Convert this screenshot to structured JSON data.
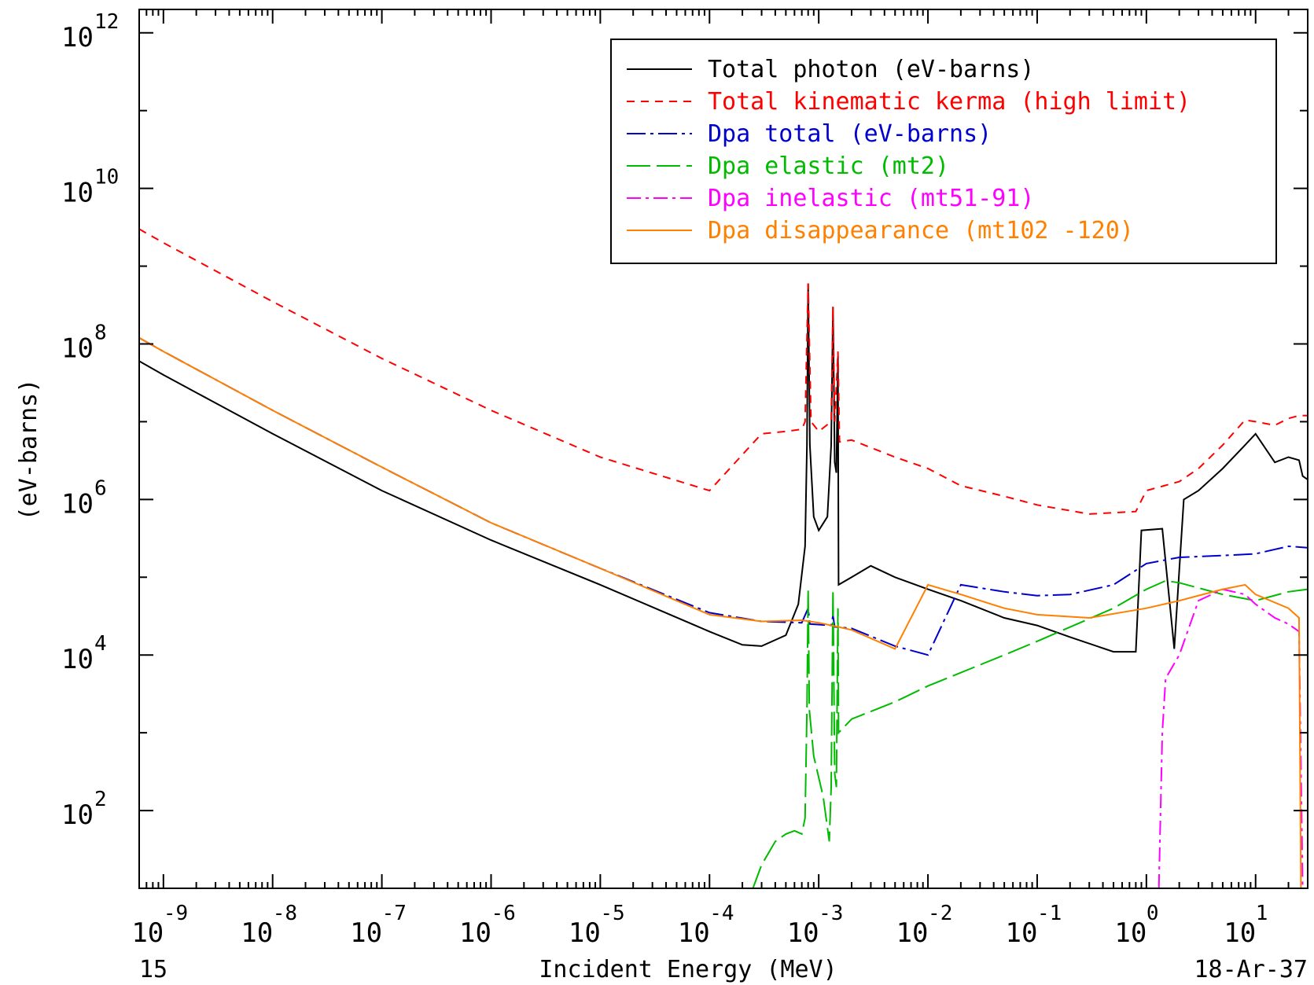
{
  "chart_data": {
    "type": "line",
    "title": "",
    "xlabel": "Incident Energy (MeV)",
    "ylabel": "(eV-barns)",
    "xscale": "log",
    "yscale": "log",
    "xlim": [
      6e-10,
      30
    ],
    "ylim": [
      10,
      2000000000000.0
    ],
    "x_major_ticks": [
      1e-09,
      1e-08,
      1e-07,
      1e-06,
      1e-05,
      0.0001,
      0.001,
      0.01,
      0.1,
      1,
      10
    ],
    "x_tick_labels": [
      {
        "base": "10",
        "exp": "-9"
      },
      {
        "base": "10",
        "exp": "-8"
      },
      {
        "base": "10",
        "exp": "-7"
      },
      {
        "base": "10",
        "exp": "-6"
      },
      {
        "base": "10",
        "exp": "-5"
      },
      {
        "base": "10",
        "exp": "-4"
      },
      {
        "base": "10",
        "exp": "-3"
      },
      {
        "base": "10",
        "exp": "-2"
      },
      {
        "base": "10",
        "exp": "-1"
      },
      {
        "base": "10",
        "exp": "0"
      },
      {
        "base": "10",
        "exp": "1"
      }
    ],
    "y_major_ticks": [
      100.0,
      10000.0,
      1000000.0,
      100000000.0,
      10000000000.0,
      1000000000000.0
    ],
    "y_minor_ticks": [
      1000.0,
      100000.0,
      10000000.0,
      1000000000.0,
      100000000000.0
    ],
    "y_tick_labels": [
      {
        "base": "10",
        "exp": "2"
      },
      {
        "base": "10",
        "exp": "4"
      },
      {
        "base": "10",
        "exp": "6"
      },
      {
        "base": "10",
        "exp": "8"
      },
      {
        "base": "10",
        "exp": "10"
      },
      {
        "base": "10",
        "exp": "12"
      }
    ],
    "grid": false,
    "legend_position": "top-right",
    "footer_left": "15",
    "footer_right": "18-Ar-37",
    "series": [
      {
        "name": "Total photon (eV-barns)",
        "color": "#000000",
        "dash": "solid",
        "points": [
          [
            6e-10,
            60000000.0
          ],
          [
            1e-09,
            40000000.0
          ],
          [
            1e-08,
            7000000.0
          ],
          [
            1e-07,
            1300000.0
          ],
          [
            1e-06,
            300000.0
          ],
          [
            1e-05,
            80000.0
          ],
          [
            0.0001,
            20000.0
          ],
          [
            0.0002,
            13500.0
          ],
          [
            0.0003,
            13000.0
          ],
          [
            0.0005,
            18000.0
          ],
          [
            0.00065,
            45000.0
          ],
          [
            0.00075,
            250000.0
          ],
          [
            0.00078,
            5000000.0
          ],
          [
            0.0008,
            600000000.0
          ],
          [
            0.00083,
            5000000.0
          ],
          [
            0.0009,
            600000.0
          ],
          [
            0.001,
            400000.0
          ],
          [
            0.0012,
            600000.0
          ],
          [
            0.0013,
            5000000.0
          ],
          [
            0.00135,
            300000000.0
          ],
          [
            0.0014,
            3000000.0
          ],
          [
            0.00145,
            2200000.0
          ],
          [
            0.0015,
            70000000.0
          ],
          [
            0.00152,
            80000.0
          ],
          [
            0.002,
            100000.0
          ],
          [
            0.003,
            140000.0
          ],
          [
            0.005,
            100000.0
          ],
          [
            0.01,
            70000.0
          ],
          [
            0.02,
            50000.0
          ],
          [
            0.05,
            30000.0
          ],
          [
            0.1,
            24000.0
          ],
          [
            0.2,
            17000.0
          ],
          [
            0.5,
            11000.0
          ],
          [
            0.8,
            11000.0
          ],
          [
            0.9,
            400000.0
          ],
          [
            1.4,
            420000.0
          ],
          [
            1.8,
            12000.0
          ],
          [
            2.2,
            1000000.0
          ],
          [
            3,
            1300000.0
          ],
          [
            5,
            2500000.0
          ],
          [
            8,
            5000000.0
          ],
          [
            10,
            7000000.0
          ],
          [
            15,
            3000000.0
          ],
          [
            20,
            3500000.0
          ],
          [
            25,
            3200000.0
          ],
          [
            27,
            2000000.0
          ],
          [
            30,
            1800000.0
          ]
        ]
      },
      {
        "name": "Total kinematic kerma (high limit)",
        "color": "#ff0000",
        "dash": "10,8",
        "points": [
          [
            6e-10,
            3000000000.0
          ],
          [
            1e-09,
            2000000000.0
          ],
          [
            1e-08,
            350000000.0
          ],
          [
            1e-07,
            65000000.0
          ],
          [
            1e-06,
            14000000.0
          ],
          [
            1e-05,
            3500000.0
          ],
          [
            0.0001,
            1300000.0
          ],
          [
            0.0003,
            7000000.0
          ],
          [
            0.0005,
            7500000.0
          ],
          [
            0.0007,
            8000000.0
          ],
          [
            0.00075,
            10000000.0
          ],
          [
            0.0008,
            600000000.0
          ],
          [
            0.00085,
            10000000.0
          ],
          [
            0.001,
            7500000.0
          ],
          [
            0.0013,
            10000000.0
          ],
          [
            0.00135,
            300000000.0
          ],
          [
            0.0014,
            10000000.0
          ],
          [
            0.0015,
            80000000.0
          ],
          [
            0.00155,
            5500000.0
          ],
          [
            0.002,
            5800000.0
          ],
          [
            0.005,
            3500000.0
          ],
          [
            0.01,
            2500000.0
          ],
          [
            0.02,
            1500000.0
          ],
          [
            0.05,
            1100000.0
          ],
          [
            0.1,
            850000.0
          ],
          [
            0.3,
            650000.0
          ],
          [
            0.8,
            700000.0
          ],
          [
            1.0,
            1300000.0
          ],
          [
            2,
            1700000.0
          ],
          [
            3,
            2500000.0
          ],
          [
            5,
            5000000.0
          ],
          [
            8,
            10500000.0
          ],
          [
            10,
            10000000.0
          ],
          [
            15,
            9000000.0
          ],
          [
            20,
            11000000.0
          ],
          [
            25,
            12000000.0
          ],
          [
            30,
            12000000.0
          ]
        ]
      },
      {
        "name": "Dpa total (eV-barns)",
        "color": "#0000cc",
        "dash": "24,6,4,6",
        "points": [
          [
            6e-10,
            120000000.0
          ],
          [
            1e-09,
            80000000.0
          ],
          [
            1e-08,
            14000000.0
          ],
          [
            1e-07,
            2600000.0
          ],
          [
            1e-06,
            500000.0
          ],
          [
            1e-05,
            130000.0
          ],
          [
            0.0001,
            35000.0
          ],
          [
            0.0003,
            27000.0
          ],
          [
            0.0007,
            26000.0
          ],
          [
            0.0008,
            40000.0
          ],
          [
            0.00083,
            25000.0
          ],
          [
            0.0013,
            24000.0
          ],
          [
            0.00135,
            32000.0
          ],
          [
            0.0014,
            23000.0
          ],
          [
            0.002,
            22000.0
          ],
          [
            0.005,
            13000.0
          ],
          [
            0.01,
            10000.0
          ],
          [
            0.02,
            80000.0
          ],
          [
            0.05,
            65000.0
          ],
          [
            0.1,
            58000.0
          ],
          [
            0.2,
            60000.0
          ],
          [
            0.5,
            80000.0
          ],
          [
            1,
            150000.0
          ],
          [
            2,
            180000.0
          ],
          [
            5,
            190000.0
          ],
          [
            10,
            200000.0
          ],
          [
            20,
            250000.0
          ],
          [
            30,
            240000.0
          ]
        ]
      },
      {
        "name": "Dpa elastic (mt2)",
        "color": "#00bb00",
        "dash": "30,8",
        "points": [
          [
            0.00025,
            10
          ],
          [
            0.0003,
            20
          ],
          [
            0.0004,
            40
          ],
          [
            0.0005,
            50
          ],
          [
            0.0006,
            55
          ],
          [
            0.0007,
            50
          ],
          [
            0.00075,
            80
          ],
          [
            0.00078,
            2000.0
          ],
          [
            0.0008,
            70000.0
          ],
          [
            0.00082,
            2000.0
          ],
          [
            0.0009,
            500.0
          ],
          [
            0.0011,
            150.0
          ],
          [
            0.00125,
            40
          ],
          [
            0.0013,
            200.0
          ],
          [
            0.00135,
            70000.0
          ],
          [
            0.0014,
            300.0
          ],
          [
            0.00145,
            200.0
          ],
          [
            0.0015,
            40000.0
          ],
          [
            0.00152,
            1000.0
          ],
          [
            0.002,
            1500.0
          ],
          [
            0.005,
            2500.0
          ],
          [
            0.01,
            4000.0
          ],
          [
            0.05,
            10000.0
          ],
          [
            0.1,
            15000.0
          ],
          [
            0.5,
            40000.0
          ],
          [
            1,
            70000.0
          ],
          [
            1.5,
            90000.0
          ],
          [
            2,
            85000.0
          ],
          [
            5,
            60000.0
          ],
          [
            10,
            50000.0
          ],
          [
            20,
            65000.0
          ],
          [
            30,
            70000.0
          ]
        ]
      },
      {
        "name": "Dpa inelastic (mt51-91)",
        "color": "#ff00ff",
        "dash": "18,6,4,6",
        "points": [
          [
            1.3,
            10
          ],
          [
            1.4,
            1000.0
          ],
          [
            1.5,
            5000.0
          ],
          [
            2,
            10000.0
          ],
          [
            3,
            50000.0
          ],
          [
            5,
            70000.0
          ],
          [
            8,
            60000.0
          ],
          [
            10,
            45000.0
          ],
          [
            15,
            30000.0
          ],
          [
            20,
            25000.0
          ],
          [
            25,
            20000.0
          ],
          [
            27,
            10
          ]
        ]
      },
      {
        "name": "Dpa disappearance (mt102 -120)",
        "color": "#ff8000",
        "dash": "solid",
        "points": [
          [
            6e-10,
            120000000.0
          ],
          [
            1e-09,
            80000000.0
          ],
          [
            1e-08,
            14000000.0
          ],
          [
            1e-07,
            2600000.0
          ],
          [
            1e-06,
            500000.0
          ],
          [
            1e-05,
            130000.0
          ],
          [
            0.0001,
            33000.0
          ],
          [
            0.0003,
            27000.0
          ],
          [
            0.0007,
            28000.0
          ],
          [
            0.001,
            26000.0
          ],
          [
            0.0015,
            23000.0
          ],
          [
            0.002,
            21000.0
          ],
          [
            0.005,
            12000.0
          ],
          [
            0.01,
            80000.0
          ],
          [
            0.02,
            60000.0
          ],
          [
            0.05,
            40000.0
          ],
          [
            0.1,
            33000.0
          ],
          [
            0.3,
            30000.0
          ],
          [
            1,
            40000.0
          ],
          [
            2,
            50000.0
          ],
          [
            5,
            70000.0
          ],
          [
            8,
            80000.0
          ],
          [
            10,
            60000.0
          ],
          [
            20,
            40000.0
          ],
          [
            25,
            30000.0
          ],
          [
            26,
            10
          ]
        ]
      }
    ]
  }
}
